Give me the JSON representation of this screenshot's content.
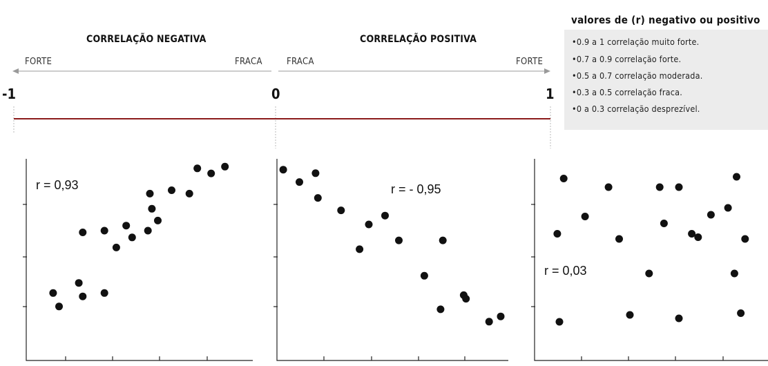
{
  "scale": {
    "negative_heading": "CORRELAÇÃO NEGATIVA",
    "positive_heading": "CORRELAÇÃO POSITIVA",
    "left_strong": "FORTE",
    "left_weak": "FRACA",
    "right_weak": "FRACA",
    "right_strong": "FORTE",
    "min_label": "-1",
    "zero_label": "0",
    "max_label": "1",
    "line_color": "#8b1a1a",
    "arrow_color": "#9a9a9a"
  },
  "legend": {
    "title": "valores de (r) negativo ou positivo",
    "items": [
      "•0.9 a 1 correlação muito forte.",
      "•0.7 a 0.9 correlação forte.",
      "•0.5 a 0.7 correlação moderada.",
      "•0.3 a 0.5 correlação fraca.",
      "•0 a 0.3 correlação desprezível."
    ],
    "background": "#ececec"
  },
  "chart_data": [
    {
      "type": "scatter",
      "annotation": "r = 0,93",
      "xlim": [
        0,
        100
      ],
      "ylim": [
        0,
        100
      ],
      "x": [
        8,
        11,
        21,
        23,
        23,
        34,
        34,
        40,
        45,
        48,
        56,
        57,
        58,
        61,
        68,
        77,
        81,
        88,
        95
      ],
      "y": [
        22,
        14,
        28,
        20,
        58,
        59,
        22,
        49,
        62,
        55,
        59,
        81,
        72,
        65,
        83,
        81,
        96,
        93,
        97
      ]
    },
    {
      "type": "scatter",
      "annotation": "r = - 0,95",
      "xlim": [
        0,
        100
      ],
      "ylim": [
        0,
        100
      ],
      "x": [
        3,
        10,
        17,
        18,
        28,
        36,
        40,
        47,
        53,
        64,
        71,
        72,
        81,
        82,
        92,
        97
      ],
      "y": [
        97,
        90,
        95,
        81,
        74,
        52,
        66,
        71,
        57,
        37,
        18,
        57,
        26,
        24,
        11,
        14
      ]
    },
    {
      "type": "scatter",
      "annotation": "r = 0,03",
      "xlim": [
        0,
        100
      ],
      "ylim": [
        0,
        100
      ],
      "x": [
        10,
        11,
        13,
        23,
        34,
        39,
        44,
        53,
        58,
        60,
        67,
        67,
        73,
        76,
        82,
        90,
        93,
        94,
        96,
        98
      ],
      "y": [
        63,
        12,
        95,
        73,
        90,
        60,
        16,
        40,
        90,
        69,
        90,
        14,
        63,
        61,
        74,
        78,
        40,
        96,
        17,
        60
      ]
    }
  ]
}
